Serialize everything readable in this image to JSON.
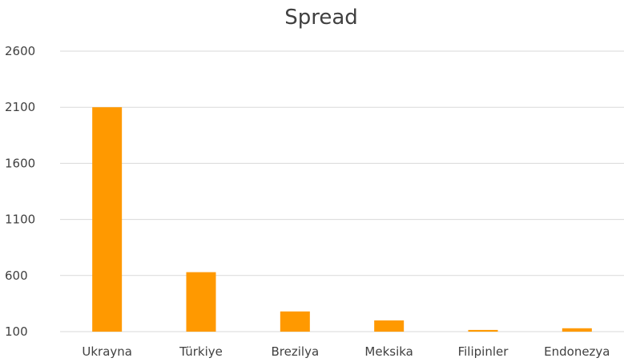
{
  "chart_data": {
    "type": "bar",
    "title": "Spread",
    "categories": [
      "Ukrayna",
      "Türkiye",
      "Brezilya",
      "Meksika",
      "Filipinler",
      "Endonezya"
    ],
    "series": [
      {
        "values": [
          2100,
          630,
          280,
          200,
          115,
          130
        ],
        "color": "#ff9900"
      }
    ],
    "ylim": [
      100,
      2600
    ],
    "yticks": [
      100,
      600,
      1100,
      1600,
      2100,
      2600
    ],
    "ytick_labels": [
      "100",
      "600",
      "1100",
      "1600",
      "2100",
      "2600"
    ],
    "grid": true,
    "legend": "none"
  }
}
